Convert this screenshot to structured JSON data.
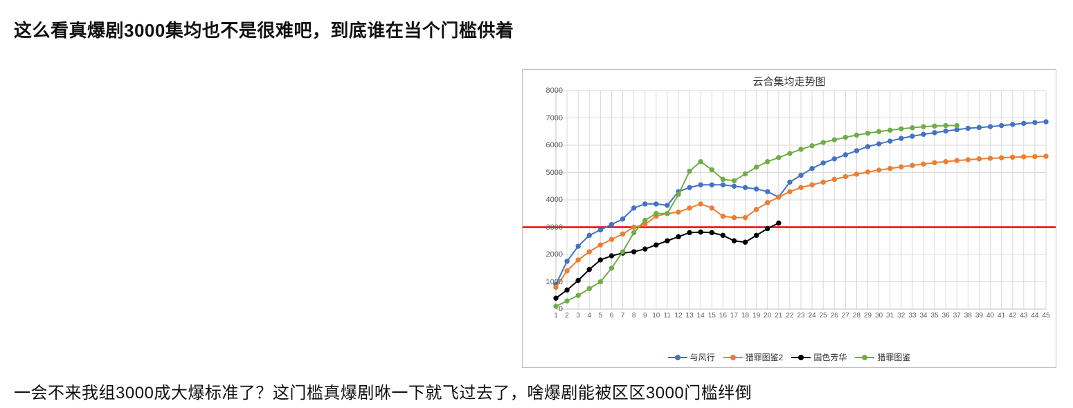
{
  "text": {
    "top_heading": "这么看真爆剧3000集均也不是很难吧，到底谁在当个门槛供着",
    "bottom_line": "一会不来我组3000成大爆标准了？这门槛真爆剧咻一下就飞过去了，啥爆剧能被区区3000门槛绊倒"
  },
  "chart": {
    "type": "line",
    "title": "云合集均走势图",
    "title_fontsize": 15,
    "background_color": "#ffffff",
    "border_color": "#bfbfbf",
    "grid_color": "#d9d9d9",
    "grid_width": 1,
    "axis_line_color": "#bfbfbf",
    "tick_label_color": "#595959",
    "tick_fontsize": 11,
    "x_axis": {
      "min": 1,
      "max": 45,
      "tick_step": 1,
      "tick_labels": [
        "1",
        "2",
        "3",
        "4",
        "5",
        "6",
        "7",
        "8",
        "9",
        "10",
        "11",
        "12",
        "13",
        "14",
        "15",
        "16",
        "17",
        "18",
        "19",
        "20",
        "21",
        "22",
        "23",
        "24",
        "25",
        "26",
        "27",
        "28",
        "29",
        "30",
        "31",
        "32",
        "33",
        "34",
        "35",
        "36",
        "37",
        "38",
        "39",
        "40",
        "41",
        "42",
        "43",
        "44",
        "45"
      ]
    },
    "y_axis": {
      "min": 0,
      "max": 8000,
      "tick_step": 1000,
      "tick_labels": [
        "0",
        "1000",
        "2000",
        "3000",
        "4000",
        "5000",
        "6000",
        "7000",
        "8000"
      ]
    },
    "reference_line": {
      "value": 3000,
      "color": "#ff0000",
      "width": 2.5
    },
    "marker_radius": 3.2,
    "line_width": 2,
    "legend_position": "bottom-center",
    "series": [
      {
        "name": "与风行",
        "color": "#4472c4",
        "data": [
          900,
          1750,
          2300,
          2700,
          2900,
          3100,
          3300,
          3700,
          3850,
          3850,
          3800,
          4300,
          4450,
          4550,
          4550,
          4550,
          4500,
          4450,
          4400,
          4300,
          4100,
          4650,
          4900,
          5150,
          5350,
          5500,
          5650,
          5800,
          5950,
          6050,
          6150,
          6250,
          6330,
          6400,
          6460,
          6520,
          6570,
          6620,
          6650,
          6680,
          6720,
          6760,
          6800,
          6830,
          6860
        ]
      },
      {
        "name": "猎罪图鉴2",
        "color": "#ed7d31",
        "data": [
          800,
          1400,
          1800,
          2100,
          2350,
          2550,
          2750,
          3000,
          3100,
          3400,
          3500,
          3550,
          3700,
          3850,
          3700,
          3400,
          3350,
          3350,
          3650,
          3900,
          4100,
          4300,
          4450,
          4550,
          4650,
          4750,
          4850,
          4940,
          5020,
          5090,
          5150,
          5210,
          5260,
          5310,
          5360,
          5400,
          5440,
          5470,
          5500,
          5520,
          5540,
          5560,
          5575,
          5585,
          5595
        ]
      },
      {
        "name": "国色芳华",
        "color": "#000000",
        "data": [
          400,
          700,
          1050,
          1450,
          1800,
          1950,
          2050,
          2100,
          2200,
          2350,
          2500,
          2650,
          2800,
          2820,
          2800,
          2700,
          2500,
          2450,
          2700,
          2950,
          3150
        ]
      },
      {
        "name": "猎罪图鉴",
        "color": "#70ad47",
        "data": [
          100,
          300,
          500,
          750,
          1000,
          1500,
          2100,
          2800,
          3250,
          3500,
          3500,
          4200,
          5050,
          5400,
          5100,
          4750,
          4700,
          4950,
          5200,
          5400,
          5550,
          5700,
          5850,
          5980,
          6100,
          6200,
          6290,
          6370,
          6440,
          6500,
          6550,
          6600,
          6640,
          6680,
          6700,
          6720,
          6720
        ]
      }
    ],
    "legend_labels": [
      "与风行",
      "猎罪图鉴2",
      "国色芳华",
      "猎罪图鉴"
    ]
  }
}
